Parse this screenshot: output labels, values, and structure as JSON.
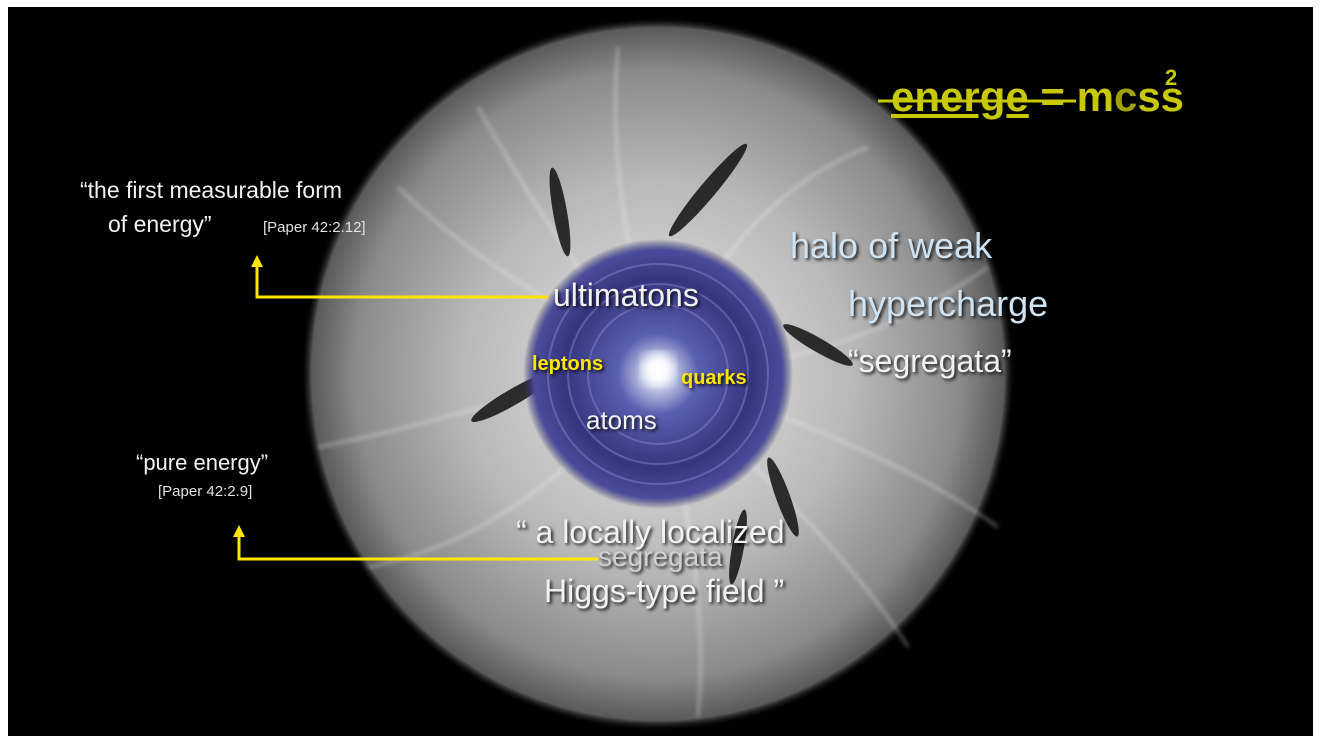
{
  "equation": {
    "struck_word": "energe",
    "rest": "= m",
    "struck_suffix": "c",
    "tail": "ss",
    "superscript": "2"
  },
  "labels": {
    "first_measurable_line1": "“the first measurable form",
    "first_measurable_line2": "of energy”",
    "first_measurable_ref": "[Paper 42:2.12]",
    "pure_energy": "“pure energy”",
    "pure_energy_ref": "[Paper 42:2.9]",
    "ultimatons": "ultimatons",
    "halo_line1": "halo of weak",
    "halo_line2": "hypercharge",
    "segregata_quote": "“segregata”",
    "leptons": "leptons",
    "quarks": "quarks",
    "atoms": "atoms",
    "higgs_line1": "“ a locally localized",
    "higgs_line2": "segregata",
    "higgs_line3": "Higgs-type field ”"
  },
  "colors": {
    "background": "#000000",
    "arrow": "#ffe600",
    "equation": "#c8c800",
    "core": "#3a3a8c"
  }
}
